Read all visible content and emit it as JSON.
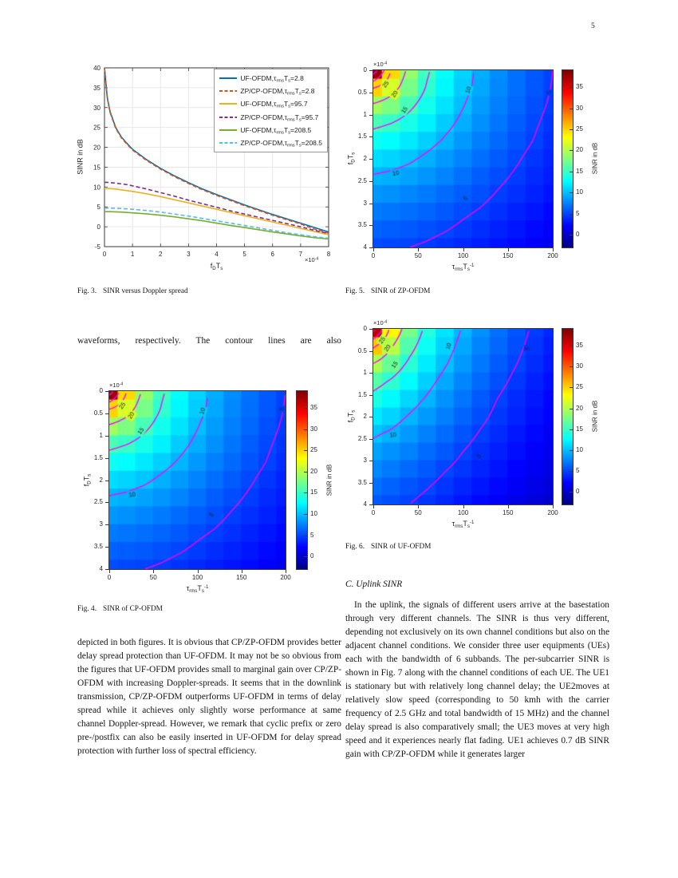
{
  "page": {
    "number": "5"
  },
  "text": {
    "left_line": "waveforms, respectively. The contour lines are also",
    "left_paragraph": "depicted in both figures. It is obvious that CP/ZP-OFDM provides better delay spread protection than UF-OFDM. It may not be so obvious from the figures that UF-OFDM provides small to marginal gain over CP/ZP-OFDM with increasing Doppler-spreads. It seems that in the downlink transmission, CP/ZP-OFDM outperforms UF-OFDM in terms of delay spread while it achieves only slightly worse performance at same channel Doppler-spread. However, we remark that cyclic prefix or zero pre-/postfix can also be easily inserted in UF-OFDM for delay spread protection with further loss of spectral efficiency.",
    "section_heading": "C. Uplink SINR",
    "right_paragraph": "In the uplink, the signals of different users arrive at the basestation through very different channels. The SINR is thus very different, depending not exclusively on its own channel conditions but also on the adjacent channel conditions. We consider three user equipments (UEs) each with the bandwidth of 6 subbands. The per-subcarrier SINR is shown in Fig. 7 along with the channel conditions of each UE. The UE1 is stationary but with relatively long channel delay; the UE2moves at relatively slow speed (corresponding to 50 kmh with the carrier frequency of 2.5 GHz and total bandwidth of 15 MHz) and the channel delay spread is also comparatively small; the UE3 moves at very high speed and it experiences nearly flat fading. UE1 achieves 0.7 dB SINR gain with CP/ZP-OFDM while it generates larger"
  },
  "captions": {
    "fig3": {
      "tag": "Fig. 3.",
      "text": "SINR versus Doppler spread"
    },
    "fig4": {
      "tag": "Fig. 4.",
      "text": "SINR of CP-OFDM"
    },
    "fig5": {
      "tag": "Fig. 5.",
      "text": "SINR of ZP-OFDM"
    },
    "fig6": {
      "tag": "Fig. 6.",
      "text": "SINR of UF-OFDM"
    }
  },
  "chart_data": [
    {
      "id": "fig3",
      "type": "line",
      "title": "Fig. 3. SINR versus Doppler spread",
      "ylabel": "SINR in dB",
      "xlabel_parts": [
        {
          "t": "f",
          "sub": "D"
        },
        {
          "t": "T",
          "sub": "s"
        }
      ],
      "x_multiplier": {
        "t": "×10",
        "sup": "-4"
      },
      "xlim": [
        0,
        8
      ],
      "ylim": [
        -5,
        40
      ],
      "xticks": [
        0,
        1,
        2,
        3,
        4,
        5,
        6,
        7,
        8
      ],
      "yticks": [
        -5,
        0,
        5,
        10,
        15,
        20,
        25,
        30,
        35,
        40
      ],
      "grid": true,
      "legend_position": "top-right",
      "legend_parts": [
        {
          "t": ",τ",
          "sub": "rms"
        },
        {
          "t": "T",
          "sub": "s"
        },
        {
          "t": "="
        }
      ],
      "x": [
        0,
        0.1,
        0.2,
        0.4,
        0.6,
        0.8,
        1,
        1.5,
        2,
        2.5,
        3,
        3.5,
        4,
        4.5,
        5,
        5.5,
        6,
        6.5,
        7,
        7.5,
        8
      ],
      "series": [
        {
          "label_prefix": "UF-OFDM",
          "tau": "2.8",
          "color": "#0072BD",
          "dash": false,
          "y": [
            40,
            32.5,
            29,
            25,
            22.6,
            21,
            19.5,
            16.9,
            14.7,
            12.8,
            11.1,
            9.5,
            8.1,
            6.8,
            5.5,
            4.3,
            3.1,
            2.0,
            0.9,
            -0.2,
            -1.3
          ]
        },
        {
          "label_prefix": "ZP/CP-OFDM",
          "tau": "2.8",
          "color": "#D95319",
          "dash": true,
          "y": [
            40,
            32.3,
            28.8,
            24.8,
            22.4,
            20.8,
            19.3,
            16.7,
            14.5,
            12.6,
            10.9,
            9.3,
            7.9,
            6.6,
            5.3,
            4.1,
            2.9,
            1.8,
            0.7,
            -0.6,
            -1.6
          ]
        },
        {
          "label_prefix": "UF-OFDM",
          "tau": "95.7",
          "color": "#EDB120",
          "dash": false,
          "y": [
            9.6,
            9.6,
            9.6,
            9.5,
            9.3,
            9.1,
            8.9,
            8.3,
            7.6,
            6.8,
            6.0,
            5.2,
            4.4,
            3.6,
            2.8,
            2.0,
            1.2,
            0.4,
            -0.4,
            -1.2,
            -2.0
          ]
        },
        {
          "label_prefix": "ZP/CP-OFDM",
          "tau": "95.7",
          "color": "#7E2F8E",
          "dash": true,
          "y": [
            11.2,
            11.2,
            11.1,
            11.0,
            10.8,
            10.6,
            10.3,
            9.5,
            8.6,
            7.7,
            6.7,
            5.8,
            4.9,
            4.0,
            3.2,
            2.4,
            1.6,
            0.8,
            0,
            -0.9,
            -1.7
          ]
        },
        {
          "label_prefix": "UF-OFDM",
          "tau": "208.5",
          "color": "#77AC30",
          "dash": false,
          "y": [
            3.8,
            3.8,
            3.8,
            3.75,
            3.7,
            3.6,
            3.5,
            3.25,
            2.9,
            2.5,
            2.0,
            1.5,
            0.9,
            0.35,
            -0.2,
            -0.75,
            -1.3,
            -1.8,
            -2.3,
            -2.75,
            -3.1
          ]
        },
        {
          "label_prefix": "ZP/CP-OFDM",
          "tau": "208.5",
          "color": "#4DBEEE",
          "dash": true,
          "y": [
            4.7,
            4.7,
            4.7,
            4.65,
            4.6,
            4.5,
            4.4,
            4.1,
            3.7,
            3.2,
            2.7,
            2.1,
            1.5,
            0.9,
            0.3,
            -0.3,
            -0.9,
            -1.5,
            -2.0,
            -2.5,
            -2.9
          ]
        }
      ]
    },
    {
      "id": "fig4",
      "type": "heatmap",
      "title": "SINR of CP-OFDM",
      "xlabel_parts": [
        {
          "t": "τ",
          "sub": "rms"
        },
        {
          "t": "T",
          "sub": "s",
          "sup": "-1"
        }
      ],
      "ylabel_parts": [
        {
          "t": "f",
          "sub": "D"
        },
        {
          "t": "T",
          "sub": "s"
        }
      ],
      "y_multiplier": {
        "t": "×10",
        "sup": "-4"
      },
      "xlim": [
        0,
        200
      ],
      "ylim": [
        0,
        4
      ],
      "xticks": [
        0,
        50,
        100,
        150,
        200
      ],
      "yticks": [
        0,
        0.5,
        1,
        1.5,
        2,
        2.5,
        3,
        3.5,
        4
      ],
      "x": [
        0,
        20,
        40,
        60,
        80,
        100,
        120,
        140,
        160,
        180,
        200
      ],
      "y": [
        0,
        0.4,
        0.8,
        1.2,
        1.6,
        2,
        2.4,
        2.8,
        3.2,
        3.6,
        4
      ],
      "values": [
        [
          38.0,
          24.8,
          18.9,
          15.4,
          12.9,
          11.0,
          9.4,
          8.1,
          6.9,
          5.9,
          5.0
        ],
        [
          25.1,
          21.6,
          17.7,
          14.7,
          12.5,
          10.7,
          9.2,
          7.9,
          6.8,
          5.8,
          4.9
        ],
        [
          19.3,
          17.9,
          15.7,
          13.5,
          11.7,
          10.1,
          8.7,
          7.5,
          6.5,
          5.5,
          4.7
        ],
        [
          15.8,
          15.0,
          13.7,
          12.2,
          10.7,
          9.4,
          8.2,
          7.1,
          6.1,
          5.2,
          4.4
        ],
        [
          13.3,
          12.8,
          11.9,
          10.8,
          9.7,
          8.6,
          7.5,
          6.6,
          5.7,
          4.9,
          4.1
        ],
        [
          11.4,
          11.0,
          10.4,
          9.5,
          8.6,
          7.7,
          6.8,
          6.0,
          5.2,
          4.4,
          3.7
        ],
        [
          9.8,
          9.5,
          9.0,
          8.4,
          7.7,
          6.9,
          6.1,
          5.4,
          4.7,
          4.0,
          3.4
        ],
        [
          8.5,
          8.2,
          7.8,
          7.3,
          6.7,
          6.1,
          5.5,
          4.8,
          4.2,
          3.6,
          3.0
        ],
        [
          7.3,
          7.1,
          6.8,
          6.4,
          5.9,
          5.3,
          4.8,
          4.2,
          3.6,
          3.1,
          2.5
        ],
        [
          6.3,
          6.1,
          5.9,
          5.5,
          5.1,
          4.6,
          4.1,
          3.6,
          3.1,
          2.6,
          2.1
        ],
        [
          5.4,
          5.2,
          5.0,
          4.7,
          4.3,
          3.9,
          3.5,
          3.0,
          2.6,
          2.1,
          1.6
        ]
      ],
      "colorbar": {
        "label": "SINR in dB",
        "ticks": [
          0,
          5,
          10,
          15,
          20,
          25,
          30,
          35
        ],
        "range": [
          -3,
          39
        ]
      },
      "contours": {
        "levels": [
          5,
          10,
          15,
          20,
          25,
          30,
          35
        ],
        "color": "#FF00FF",
        "labels": [
          {
            "t": "25",
            "x": 15,
            "y": 0.33,
            "r": -55
          },
          {
            "t": "20",
            "x": 25,
            "y": 0.55,
            "r": -55
          },
          {
            "t": "15",
            "x": 36,
            "y": 0.9,
            "r": -55
          },
          {
            "t": "10",
            "x": 106,
            "y": 0.45,
            "r": -72
          },
          {
            "t": "10",
            "x": 26,
            "y": 2.33,
            "r": -8
          },
          {
            "t": "5",
            "x": 196,
            "y": 0.4,
            "r": -80
          },
          {
            "t": "5",
            "x": 116,
            "y": 2.78,
            "r": -42
          }
        ]
      }
    },
    {
      "id": "fig5",
      "type": "heatmap",
      "title": "SINR of ZP-OFDM",
      "xlabel_parts": [
        {
          "t": "τ",
          "sub": "rms"
        },
        {
          "t": "T",
          "sub": "s",
          "sup": "-1"
        }
      ],
      "ylabel_parts": [
        {
          "t": "f",
          "sub": "D"
        },
        {
          "t": "T",
          "sub": "s"
        }
      ],
      "y_multiplier": {
        "t": "×10",
        "sup": "-4"
      },
      "xlim": [
        0,
        200
      ],
      "ylim": [
        0,
        4
      ],
      "xticks": [
        0,
        50,
        100,
        150,
        200
      ],
      "yticks": [
        0,
        0.5,
        1,
        1.5,
        2,
        2.5,
        3,
        3.5,
        4
      ],
      "x": [
        0,
        20,
        40,
        60,
        80,
        100,
        120,
        140,
        160,
        180,
        200
      ],
      "y": [
        0,
        0.4,
        0.8,
        1.2,
        1.6,
        2,
        2.4,
        2.8,
        3.2,
        3.6,
        4
      ],
      "values": [
        [
          38.0,
          24.8,
          18.9,
          15.4,
          12.9,
          11.0,
          9.4,
          8.1,
          6.9,
          5.9,
          5.0
        ],
        [
          25.1,
          21.6,
          17.7,
          14.7,
          12.5,
          10.7,
          9.2,
          7.9,
          6.8,
          5.8,
          4.9
        ],
        [
          19.3,
          17.9,
          15.7,
          13.5,
          11.7,
          10.1,
          8.7,
          7.5,
          6.5,
          5.5,
          4.7
        ],
        [
          15.8,
          15.0,
          13.7,
          12.2,
          10.7,
          9.4,
          8.2,
          7.1,
          6.1,
          5.2,
          4.4
        ],
        [
          13.3,
          12.8,
          11.9,
          10.8,
          9.7,
          8.6,
          7.5,
          6.6,
          5.7,
          4.9,
          4.1
        ],
        [
          11.4,
          11.0,
          10.4,
          9.5,
          8.6,
          7.7,
          6.8,
          6.0,
          5.2,
          4.4,
          3.7
        ],
        [
          9.8,
          9.5,
          9.0,
          8.4,
          7.7,
          6.9,
          6.1,
          5.4,
          4.7,
          4.0,
          3.4
        ],
        [
          8.5,
          8.2,
          7.8,
          7.3,
          6.7,
          6.1,
          5.5,
          4.8,
          4.2,
          3.6,
          3.0
        ],
        [
          7.3,
          7.1,
          6.8,
          6.4,
          5.9,
          5.3,
          4.8,
          4.2,
          3.6,
          3.1,
          2.5
        ],
        [
          6.3,
          6.1,
          5.9,
          5.5,
          5.1,
          4.6,
          4.1,
          3.6,
          3.1,
          2.6,
          2.1
        ],
        [
          5.4,
          5.2,
          5.0,
          4.7,
          4.3,
          3.9,
          3.5,
          3.0,
          2.6,
          2.1,
          1.6
        ]
      ],
      "colorbar": {
        "label": "SINR in dB",
        "ticks": [
          0,
          5,
          10,
          15,
          20,
          25,
          30,
          35
        ],
        "range": [
          -3,
          39
        ]
      },
      "contours": {
        "levels": [
          5,
          10,
          15,
          20,
          25,
          30,
          35
        ],
        "color": "#FF00FF",
        "labels": [
          {
            "t": "25",
            "x": 14,
            "y": 0.32,
            "r": -55
          },
          {
            "t": "20",
            "x": 24,
            "y": 0.54,
            "r": -55
          },
          {
            "t": "15",
            "x": 35,
            "y": 0.9,
            "r": -55
          },
          {
            "t": "10",
            "x": 106,
            "y": 0.45,
            "r": -72
          },
          {
            "t": "10",
            "x": 25,
            "y": 2.33,
            "r": -8
          },
          {
            "t": "5",
            "x": 196,
            "y": 0.5,
            "r": -80
          },
          {
            "t": "5",
            "x": 103,
            "y": 2.9,
            "r": -40
          }
        ]
      }
    },
    {
      "id": "fig6",
      "type": "heatmap",
      "title": "SINR of UF-OFDM",
      "xlabel_parts": [
        {
          "t": "τ",
          "sub": "rms"
        },
        {
          "t": "T",
          "sub": "s",
          "sup": "-1"
        }
      ],
      "ylabel_parts": [
        {
          "t": "f",
          "sub": "D"
        },
        {
          "t": "T",
          "sub": "s"
        }
      ],
      "y_multiplier": {
        "t": "×10",
        "sup": "-4"
      },
      "xlim": [
        0,
        200
      ],
      "ylim": [
        0,
        4
      ],
      "xticks": [
        0,
        50,
        100,
        150,
        200
      ],
      "yticks": [
        0,
        0.5,
        1,
        1.5,
        2,
        2.5,
        3,
        3.5,
        4
      ],
      "x": [
        0,
        20,
        40,
        60,
        80,
        100,
        120,
        140,
        160,
        180,
        200
      ],
      "y": [
        0,
        0.4,
        0.8,
        1.2,
        1.6,
        2,
        2.4,
        2.8,
        3.2,
        3.6,
        4
      ],
      "values": [
        [
          36.6,
          23.5,
          17.7,
          14.2,
          11.7,
          9.8,
          8.2,
          6.9,
          5.7,
          4.7,
          3.8
        ],
        [
          25.6,
          20.3,
          16.1,
          13.2,
          11.0,
          9.2,
          7.7,
          6.5,
          5.4,
          4.4,
          3.5
        ],
        [
          19.8,
          17.1,
          14.4,
          12.0,
          10.2,
          8.6,
          7.2,
          6.0,
          5.0,
          4.1,
          3.2
        ],
        [
          16.3,
          14.6,
          12.7,
          10.8,
          9.2,
          7.8,
          6.6,
          5.5,
          4.5,
          3.6,
          2.8
        ],
        [
          13.9,
          12.6,
          11.1,
          9.7,
          8.3,
          7.1,
          5.9,
          4.9,
          4.0,
          3.2,
          2.4
        ],
        [
          11.9,
          11.0,
          9.8,
          8.6,
          7.5,
          6.4,
          5.4,
          4.5,
          3.7,
          2.9,
          2.2
        ],
        [
          10.3,
          9.6,
          8.6,
          7.6,
          6.7,
          5.7,
          4.8,
          4.0,
          3.2,
          2.5,
          1.8
        ],
        [
          9.0,
          8.3,
          7.6,
          6.7,
          5.9,
          5.0,
          4.2,
          3.5,
          2.8,
          2.1,
          1.5
        ],
        [
          7.9,
          7.3,
          6.6,
          5.9,
          5.1,
          4.4,
          3.7,
          3.0,
          2.3,
          1.7,
          1.1
        ],
        [
          6.8,
          6.3,
          5.7,
          5.1,
          4.4,
          3.7,
          3.1,
          2.5,
          1.9,
          1.3,
          0.7
        ],
        [
          5.9,
          5.5,
          5.0,
          4.4,
          3.8,
          3.1,
          2.5,
          1.9,
          1.2,
          0.7,
          0.1
        ]
      ],
      "colorbar": {
        "label": "SINR in dB",
        "ticks": [
          0,
          5,
          10,
          15,
          20,
          25,
          30,
          35
        ],
        "range": [
          -3,
          39
        ]
      },
      "contours": {
        "levels": [
          5,
          10,
          15,
          20,
          25,
          30,
          35
        ],
        "color": "#FF00FF",
        "labels": [
          {
            "t": "25",
            "x": 10,
            "y": 0.26,
            "r": -55
          },
          {
            "t": "20",
            "x": 16,
            "y": 0.44,
            "r": -55
          },
          {
            "t": "15",
            "x": 24,
            "y": 0.82,
            "r": -55
          },
          {
            "t": "10",
            "x": 84,
            "y": 0.4,
            "r": -72
          },
          {
            "t": "10",
            "x": 22,
            "y": 2.42,
            "r": -8
          },
          {
            "t": "5",
            "x": 172,
            "y": 0.45,
            "r": -80
          },
          {
            "t": "5",
            "x": 118,
            "y": 2.9,
            "r": -40
          }
        ]
      }
    }
  ]
}
